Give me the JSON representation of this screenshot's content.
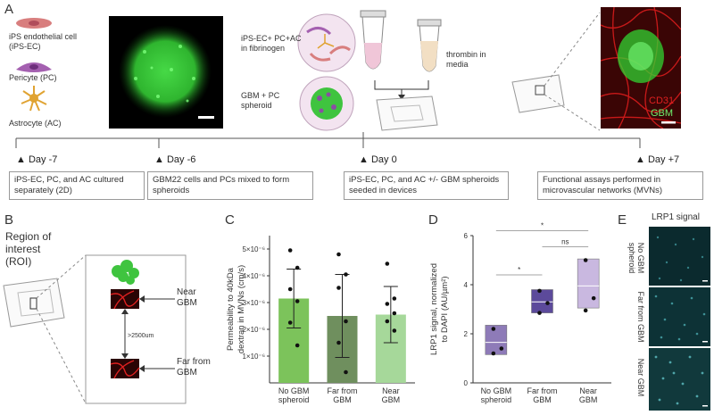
{
  "panels": {
    "a": "A",
    "b": "B",
    "c": "C",
    "d": "D",
    "e": "E"
  },
  "legend": {
    "endothelial": "iPS endothelial cell (iPS-EC)",
    "pericyte": "Pericyte (PC)",
    "astrocyte": "Astrocyte (AC)"
  },
  "mixes": {
    "fibrinogen": "iPS-EC+ PC+AC in fibrinogen",
    "spheroid": "GBM + PC spheroid",
    "thrombin": "thrombin in media"
  },
  "micro_labels": {
    "cd31": "CD31",
    "gbm": "GBM"
  },
  "timeline": [
    {
      "day": "Day -7",
      "text": "iPS-EC, PC, and AC cultured separately (2D)"
    },
    {
      "day": "Day -6",
      "text": "GBM22 cells and PCs mixed to form spheroids"
    },
    {
      "day": "Day 0",
      "text": "iPS-EC, PC, and AC +/- GBM spheroids seeded in devices"
    },
    {
      "day": "Day +7",
      "text": "Functional assays performed in microvascular networks (MVNs)"
    }
  ],
  "panel_b": {
    "roi": "Region of interest (ROI)",
    "near": "Near GBM",
    "far": "Far from GBM",
    "distance": ">2500um"
  },
  "panel_e": {
    "title": "LRP1 signal",
    "rows": [
      "No GBM spheroid",
      "Far from GBM",
      "Near GBM"
    ]
  },
  "colors": {
    "c_bars": [
      "#7cc35b",
      "#6f8f5e",
      "#a6d89a"
    ],
    "d_boxes": [
      "#8e7bb8",
      "#5c4a9b",
      "#c9b8e0"
    ],
    "gbm_green": "#3fd13f",
    "cd31_red": "#e02020"
  },
  "chart_data": [
    {
      "type": "bar",
      "ylabel": "Permeability to 40kDa dextran in MVNs (cm/s)",
      "categories": [
        "No GBM spheroid",
        "Far from GBM",
        "Near GBM"
      ],
      "yticks": [
        "1×10⁻⁶",
        "2×10⁻⁶",
        "3×10⁻⁶",
        "4×10⁻⁶",
        "5×10⁻⁶"
      ],
      "ylim": [
        0,
        5.5
      ],
      "values": [
        3.15,
        2.5,
        2.55
      ],
      "errors": [
        1.1,
        1.55,
        1.05
      ],
      "points": [
        [
          4.95,
          4.3,
          3.5,
          3.05,
          2.25,
          1.4
        ],
        [
          4.8,
          4.05,
          3.55,
          2.3,
          1.5,
          0.4
        ],
        [
          4.45,
          3.15,
          2.95,
          2.6,
          2.3,
          1.95
        ]
      ]
    },
    {
      "type": "box",
      "ylabel": "LRP1 signal, normalized to DAPI (AU/µm²)",
      "categories": [
        "No GBM spheroid",
        "Far from GBM",
        "Near GBM"
      ],
      "yticks": [
        "0",
        "2",
        "4",
        "6"
      ],
      "ylim": [
        0,
        6
      ],
      "boxes": [
        {
          "q1": 1.15,
          "median": 1.65,
          "q3": 2.35
        },
        {
          "q1": 2.85,
          "median": 3.3,
          "q3": 3.8
        },
        {
          "q1": 3.05,
          "median": 3.95,
          "q3": 5.05
        }
      ],
      "points": [
        [
          2.2,
          1.4,
          1.2
        ],
        [
          3.75,
          3.25,
          2.85
        ],
        [
          5.0,
          3.45,
          2.95
        ]
      ],
      "significance": [
        {
          "from": 0,
          "to": 2,
          "label": "*",
          "y": 6.2
        },
        {
          "from": 1,
          "to": 2,
          "label": "ns",
          "y": 5.55
        },
        {
          "from": 0,
          "to": 1,
          "label": "*",
          "y": 4.4
        }
      ]
    }
  ]
}
